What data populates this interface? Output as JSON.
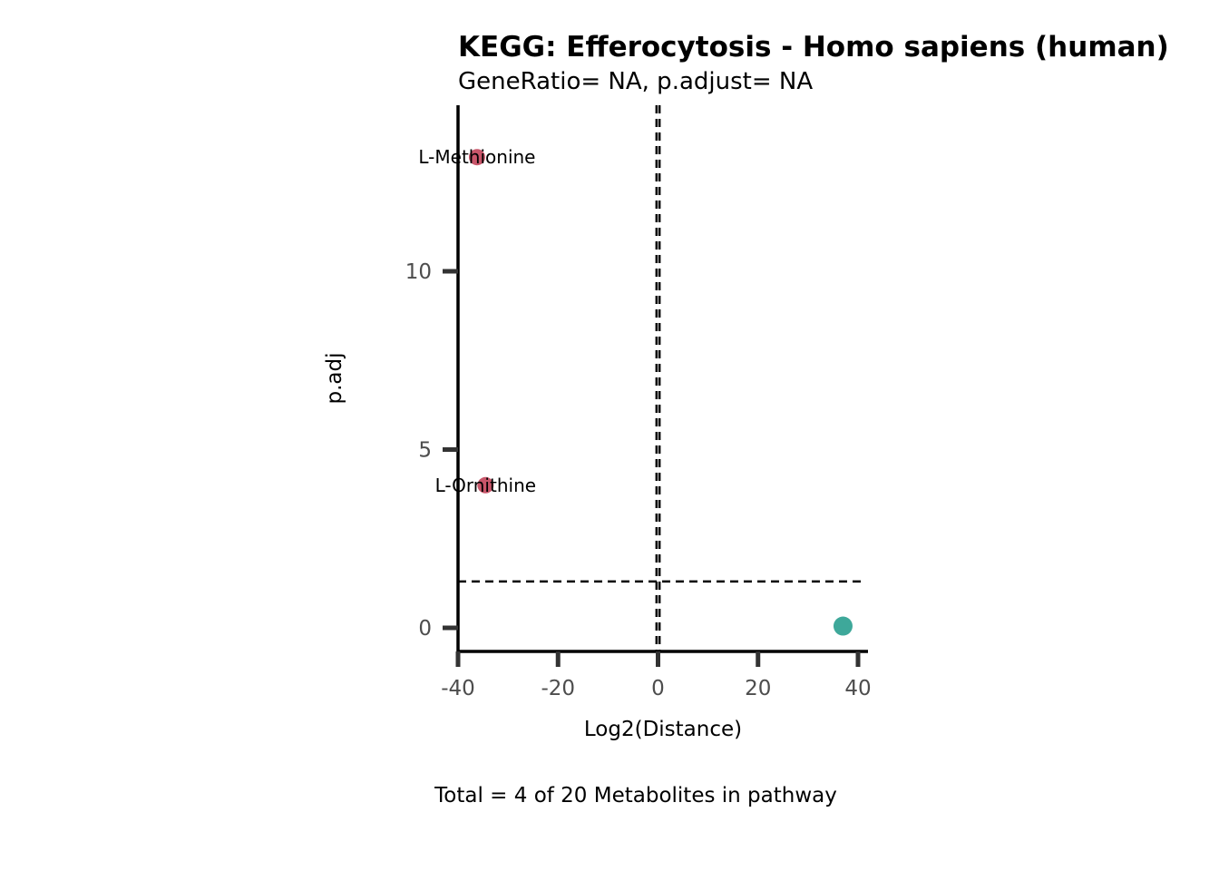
{
  "chart_data": {
    "type": "scatter",
    "title": "KEGG: Efferocytosis - Homo sapiens (human)",
    "subtitle": "GeneRatio= NA, p.adjust= NA",
    "xlabel": "Log2(Distance)",
    "ylabel": "p.adj",
    "caption": "Total = 4 of 20 Metabolites in pathway",
    "xlim": [
      -40,
      41
    ],
    "ylim": [
      -0.7,
      14.7
    ],
    "x_ticks": [
      -40,
      -20,
      0,
      20,
      40
    ],
    "x_tick_labels": [
      "-40",
      "-20",
      "0",
      "20",
      "40"
    ],
    "y_ticks": [
      0,
      5,
      10
    ],
    "y_tick_labels": [
      "0",
      "5",
      "10"
    ],
    "grid": false,
    "reference_lines": {
      "vertical": [
        -0.3,
        0.3
      ],
      "horizontal": [
        1.3
      ]
    },
    "points": [
      {
        "x": -36.2,
        "y": 13.2,
        "label": "L-Methionine",
        "color": "#c8566a",
        "size": "small"
      },
      {
        "x": -34.5,
        "y": 4.0,
        "label": "L-Ornithine",
        "color": "#c8566a",
        "size": "small"
      },
      {
        "x": 37.0,
        "y": 0.05,
        "label": "",
        "color": "#3ea89a",
        "size": "large"
      }
    ]
  }
}
